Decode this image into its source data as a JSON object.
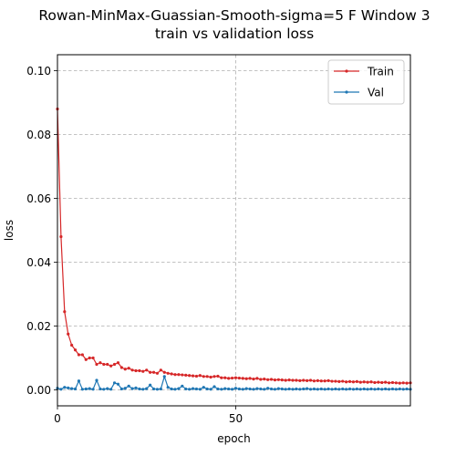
{
  "chart_data": {
    "type": "line",
    "title": "Rowan-MinMax-Guassian-Smooth-sigma=5 F Window 3",
    "subtitle": "train vs validation loss",
    "xlabel": "epoch",
    "ylabel": "loss",
    "xlim": [
      0,
      99
    ],
    "ylim": [
      -0.005,
      0.105
    ],
    "xticks": [
      0,
      50
    ],
    "yticks": [
      0.0,
      0.02,
      0.04,
      0.06,
      0.08,
      0.1
    ],
    "ytick_labels": [
      "0.00",
      "0.02",
      "0.04",
      "0.06",
      "0.08",
      "0.10"
    ],
    "grid": true,
    "legend_position": "top-right",
    "series": [
      {
        "name": "Train",
        "color": "#d62728",
        "values": [
          0.088,
          0.048,
          0.0245,
          0.0175,
          0.014,
          0.0125,
          0.011,
          0.011,
          0.0095,
          0.01,
          0.01,
          0.008,
          0.0085,
          0.008,
          0.008,
          0.0075,
          0.008,
          0.0085,
          0.007,
          0.0065,
          0.0068,
          0.0062,
          0.006,
          0.006,
          0.0058,
          0.0062,
          0.0055,
          0.0055,
          0.0052,
          0.0062,
          0.0055,
          0.0052,
          0.005,
          0.0048,
          0.0048,
          0.0047,
          0.0046,
          0.0045,
          0.0044,
          0.0043,
          0.0045,
          0.0042,
          0.0042,
          0.004,
          0.0042,
          0.0043,
          0.0038,
          0.0038,
          0.0036,
          0.0037,
          0.0038,
          0.0037,
          0.0036,
          0.0035,
          0.0036,
          0.0034,
          0.0036,
          0.0033,
          0.0034,
          0.0032,
          0.0033,
          0.0031,
          0.0032,
          0.0031,
          0.003,
          0.0031,
          0.003,
          0.003,
          0.0029,
          0.003,
          0.0029,
          0.003,
          0.0028,
          0.0029,
          0.0028,
          0.0028,
          0.0029,
          0.0027,
          0.0027,
          0.0026,
          0.0027,
          0.0025,
          0.0026,
          0.0025,
          0.0026,
          0.0024,
          0.0025,
          0.0024,
          0.0025,
          0.0023,
          0.0024,
          0.0023,
          0.0024,
          0.0022,
          0.0023,
          0.0022,
          0.0021,
          0.0022,
          0.0021,
          0.0022
        ]
      },
      {
        "name": "Val",
        "color": "#1f77b4",
        "values": [
          0.0005,
          0.0002,
          0.0008,
          0.0006,
          0.0004,
          0.0003,
          0.0028,
          0.0002,
          0.0003,
          0.0004,
          0.0002,
          0.003,
          0.0003,
          0.0002,
          0.0004,
          0.0002,
          0.0022,
          0.0018,
          0.0003,
          0.0005,
          0.0012,
          0.0004,
          0.0006,
          0.0003,
          0.0002,
          0.0004,
          0.0015,
          0.0003,
          0.0002,
          0.0003,
          0.0042,
          0.0008,
          0.0003,
          0.0002,
          0.0004,
          0.0012,
          0.0003,
          0.0002,
          0.0004,
          0.0003,
          0.0002,
          0.0008,
          0.0003,
          0.0002,
          0.001,
          0.0003,
          0.0002,
          0.0004,
          0.0003,
          0.0002,
          0.0005,
          0.0003,
          0.0002,
          0.0004,
          0.0003,
          0.0002,
          0.0004,
          0.0003,
          0.0002,
          0.0005,
          0.0003,
          0.0002,
          0.0004,
          0.0003,
          0.0002,
          0.0003,
          0.0002,
          0.0003,
          0.0002,
          0.0003,
          0.0004,
          0.0002,
          0.0003,
          0.0002,
          0.0003,
          0.0002,
          0.0003,
          0.0002,
          0.0003,
          0.0002,
          0.0003,
          0.0002,
          0.0003,
          0.0002,
          0.0003,
          0.0002,
          0.0003,
          0.0002,
          0.0003,
          0.0002,
          0.0003,
          0.0002,
          0.0003,
          0.0002,
          0.0003,
          0.0002,
          0.0003,
          0.0002,
          0.0003,
          0.0002
        ]
      }
    ]
  }
}
